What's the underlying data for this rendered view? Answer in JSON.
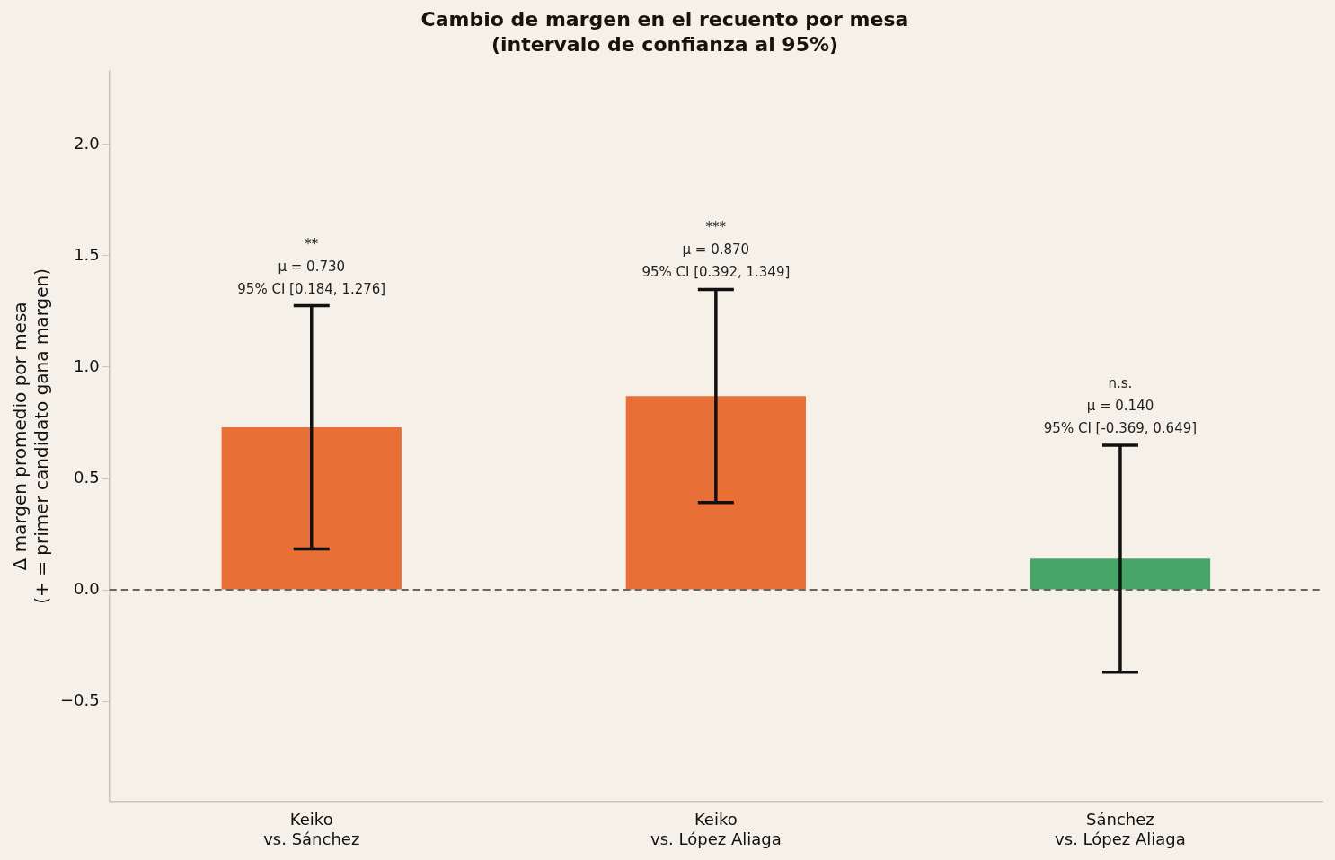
{
  "chart_data": {
    "type": "bar",
    "title": "Cambio de margen en el recuento por mesa\n(intervalo de confianza al 95%)",
    "ylabel": "Δ margen promedio por mesa\n(+ = primer candidato gana margen)",
    "categories": [
      "Keiko\nvs. Sánchez",
      "Keiko\nvs. López Aliaga",
      "Sánchez\nvs. López Aliaga"
    ],
    "values": [
      0.73,
      0.87,
      0.14
    ],
    "colors": [
      "#e86f36",
      "#e86f36",
      "#47a56a"
    ],
    "errors": [
      [
        0.184,
        1.276
      ],
      [
        0.392,
        1.349
      ],
      [
        -0.369,
        0.649
      ]
    ],
    "annotations": [
      {
        "text": "**\nμ = 0.730\n95% CI [0.184, 1.276]",
        "x": "Keiko\nvs. Sánchez",
        "y": 1.276
      },
      {
        "text": "***\nμ = 0.870\n95% CI [0.392, 1.349]",
        "x": "Keiko\nvs. López Aliaga",
        "y": 1.349
      },
      {
        "text": "n.s.\nμ = 0.140\n95% CI [-0.369, 0.649]",
        "x": "Sánchez\nvs. López Aliaga",
        "y": 0.649
      }
    ],
    "ylim": [
      -0.95,
      2.33
    ],
    "yticks": [
      {
        "value": -0.5,
        "label": "−0.5"
      },
      {
        "value": 0,
        "label": "0.0"
      },
      0.5,
      {
        "value": 1,
        "label": "1.0"
      },
      1.5,
      {
        "value": 2,
        "label": "2.0"
      }
    ],
    "ref_lines": [
      {
        "axis": "y",
        "value": 0,
        "color": "#666666",
        "line_style": "dashed"
      }
    ],
    "grid": false
  }
}
